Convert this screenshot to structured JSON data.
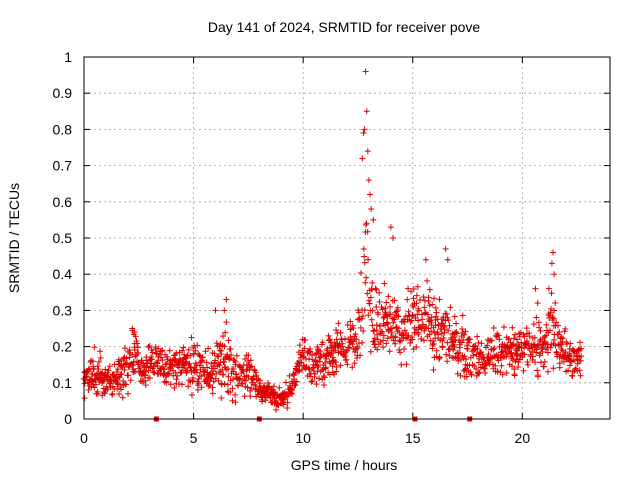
{
  "chart_data": {
    "type": "scatter",
    "title": "Day 141 of 2024, SRMTID for receiver pove",
    "xlabel": "GPS time / hours",
    "ylabel": "SRMTID / TECUs",
    "xlim": [
      0,
      24
    ],
    "ylim": [
      0,
      1
    ],
    "x_ticks": [
      "0",
      "5",
      "10",
      "15",
      "20"
    ],
    "x_tick_values": [
      0,
      5,
      10,
      15,
      20
    ],
    "y_ticks": [
      "0",
      "0.1",
      "0.2",
      "0.3",
      "0.4",
      "0.5",
      "0.6",
      "0.7",
      "0.8",
      "0.9",
      "1"
    ],
    "y_tick_values": [
      0,
      0.1,
      0.2,
      0.3,
      0.4,
      0.5,
      0.6,
      0.7,
      0.8,
      0.9,
      1.0
    ],
    "grid": true,
    "marker": "+",
    "color": "#e00000",
    "x_range_of_data": [
      0,
      22.7
    ],
    "profile": [
      [
        0.0,
        0.1,
        0.03
      ],
      [
        0.5,
        0.13,
        0.04
      ],
      [
        1.0,
        0.11,
        0.03
      ],
      [
        1.5,
        0.11,
        0.03
      ],
      [
        2.0,
        0.14,
        0.05
      ],
      [
        2.3,
        0.19,
        0.05
      ],
      [
        2.7,
        0.12,
        0.03
      ],
      [
        3.0,
        0.16,
        0.03
      ],
      [
        3.5,
        0.15,
        0.04
      ],
      [
        4.0,
        0.14,
        0.04
      ],
      [
        4.5,
        0.15,
        0.04
      ],
      [
        5.0,
        0.14,
        0.05
      ],
      [
        5.5,
        0.14,
        0.04
      ],
      [
        6.0,
        0.13,
        0.05
      ],
      [
        6.5,
        0.15,
        0.07
      ],
      [
        7.0,
        0.1,
        0.04
      ],
      [
        7.5,
        0.13,
        0.05
      ],
      [
        8.0,
        0.08,
        0.02
      ],
      [
        8.5,
        0.07,
        0.02
      ],
      [
        9.0,
        0.05,
        0.02
      ],
      [
        9.5,
        0.09,
        0.03
      ],
      [
        10.0,
        0.19,
        0.03
      ],
      [
        10.5,
        0.14,
        0.04
      ],
      [
        11.0,
        0.17,
        0.04
      ],
      [
        11.5,
        0.19,
        0.05
      ],
      [
        12.0,
        0.2,
        0.04
      ],
      [
        12.5,
        0.23,
        0.05
      ],
      [
        12.9,
        0.38,
        0.14
      ],
      [
        13.2,
        0.26,
        0.07
      ],
      [
        13.5,
        0.27,
        0.07
      ],
      [
        14.0,
        0.28,
        0.06
      ],
      [
        14.5,
        0.24,
        0.06
      ],
      [
        15.0,
        0.27,
        0.07
      ],
      [
        15.5,
        0.29,
        0.06
      ],
      [
        16.0,
        0.25,
        0.07
      ],
      [
        16.5,
        0.25,
        0.06
      ],
      [
        17.0,
        0.2,
        0.05
      ],
      [
        17.5,
        0.19,
        0.05
      ],
      [
        18.0,
        0.17,
        0.04
      ],
      [
        18.5,
        0.18,
        0.04
      ],
      [
        19.0,
        0.19,
        0.04
      ],
      [
        19.5,
        0.18,
        0.04
      ],
      [
        20.0,
        0.21,
        0.04
      ],
      [
        20.5,
        0.19,
        0.05
      ],
      [
        21.0,
        0.2,
        0.05
      ],
      [
        21.3,
        0.27,
        0.09
      ],
      [
        21.7,
        0.19,
        0.04
      ],
      [
        22.0,
        0.17,
        0.04
      ],
      [
        22.7,
        0.17,
        0.04
      ]
    ],
    "peaks": [
      [
        12.8,
        0.8
      ],
      [
        12.85,
        0.96
      ],
      [
        12.9,
        0.85
      ],
      [
        12.95,
        0.74
      ],
      [
        13.0,
        0.66
      ],
      [
        12.75,
        0.79
      ],
      [
        12.7,
        0.72
      ],
      [
        13.05,
        0.62
      ],
      [
        13.1,
        0.58
      ],
      [
        13.2,
        0.55
      ],
      [
        14.0,
        0.53
      ],
      [
        14.1,
        0.5
      ],
      [
        16.5,
        0.47
      ],
      [
        16.6,
        0.44
      ],
      [
        15.6,
        0.44
      ],
      [
        21.4,
        0.46
      ],
      [
        21.35,
        0.43
      ],
      [
        21.45,
        0.4
      ],
      [
        20.6,
        0.36
      ],
      [
        20.7,
        0.32
      ],
      [
        6.0,
        0.3
      ],
      [
        6.5,
        0.33
      ],
      [
        6.4,
        0.3
      ],
      [
        2.2,
        0.25
      ],
      [
        2.3,
        0.24
      ]
    ],
    "zero_markers": [
      3.3,
      8.0,
      15.1,
      17.6
    ]
  }
}
